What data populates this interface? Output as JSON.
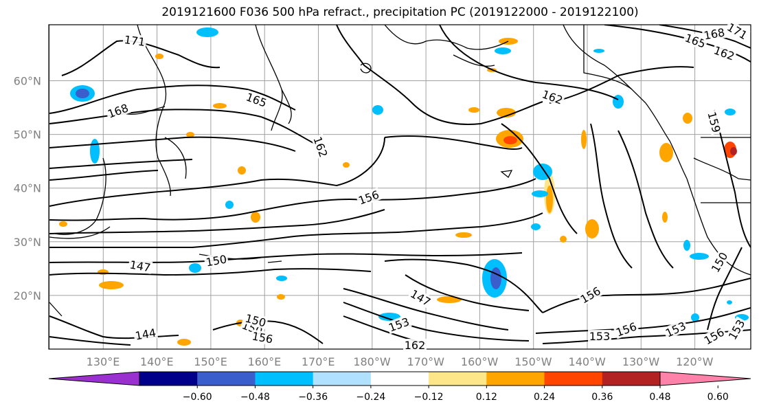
{
  "title": "2019121600 F036 500 hPa refract., precipitation PC (2019122000 - 2019122100)",
  "lat_labels": [
    {
      "text": "60°N",
      "lat": 60
    },
    {
      "text": "50°N",
      "lat": 50
    },
    {
      "text": "40°N",
      "lat": 40
    },
    {
      "text": "30°N",
      "lat": 30
    },
    {
      "text": "20°N",
      "lat": 20
    }
  ],
  "lon_labels": [
    "130°E",
    "140°E",
    "150°E",
    "160°E",
    "170°E",
    "180°W",
    "170°W",
    "160°W",
    "150°W",
    "140°W",
    "130°W",
    "120°W"
  ],
  "contour_labels": [
    "171",
    "168",
    "165",
    "162",
    "162",
    "156",
    "150",
    "147",
    "147",
    "144",
    "150",
    "156",
    "162",
    "153",
    "156",
    "153",
    "156",
    "153",
    "156",
    "153",
    "150",
    "165",
    "162",
    "168",
    "171",
    "159",
    "150"
  ],
  "colorbar": {
    "colors": [
      "#9b30d0",
      "#00008b",
      "#3a5fcd",
      "#00bfff",
      "#b0e2ff",
      "#ffffff",
      "#fde68a",
      "#ffa500",
      "#ff4500",
      "#b22222",
      "#ff82ab"
    ],
    "ticks": [
      "−0.60",
      "−0.48",
      "−0.36",
      "−0.24",
      "−0.12",
      "0.12",
      "0.24",
      "0.36",
      "0.48",
      "0.60"
    ]
  }
}
